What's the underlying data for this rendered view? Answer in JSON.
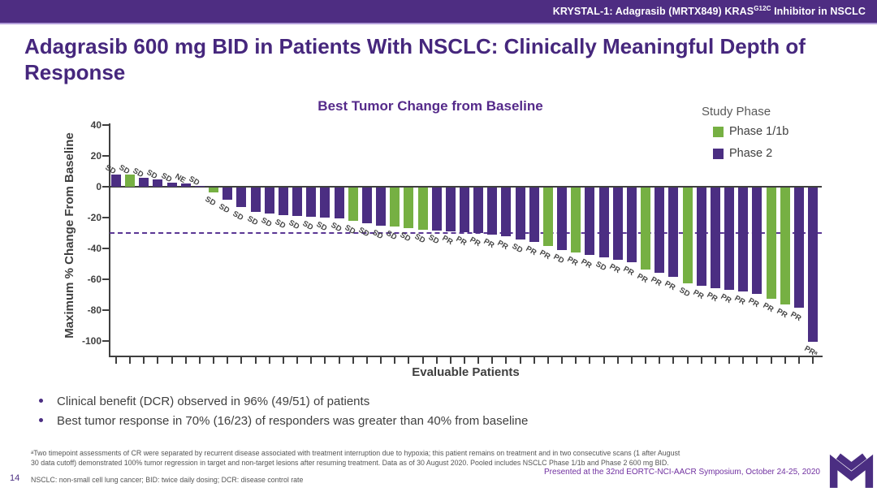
{
  "header": {
    "title_prefix": "KRYSTAL-1: Adagrasib (MRTX849) KRAS",
    "title_sup": "G12C",
    "title_suffix": " Inhibitor in NSCLC"
  },
  "slide": {
    "title": "Adagrasib 600 mg BID in Patients With NSCLC: Clinically Meaningful Depth of Response"
  },
  "chart_data": {
    "type": "bar",
    "subtype": "waterfall",
    "title": "Best Tumor Change from Baseline",
    "xlabel": "Evaluable Patients",
    "ylabel": "Maximum % Change From Baseline",
    "ylim": [
      -100,
      40
    ],
    "yticks": [
      40,
      20,
      0,
      -20,
      -40,
      -60,
      -80,
      -100
    ],
    "reference_line": -30,
    "grid": false,
    "legend": {
      "title": "Study Phase",
      "position": "top-right",
      "entries": [
        {
          "label": "Phase 1/1b",
          "color": "#76b043"
        },
        {
          "label": "Phase 2",
          "color": "#4b2e82"
        }
      ]
    },
    "bars": [
      {
        "value": 8,
        "response": "SD",
        "phase": "Phase 2"
      },
      {
        "value": 8,
        "response": "SD",
        "phase": "Phase 1/1b"
      },
      {
        "value": 6,
        "response": "SD",
        "phase": "Phase 2"
      },
      {
        "value": 5,
        "response": "SD",
        "phase": "Phase 2"
      },
      {
        "value": 2.5,
        "response": "SD",
        "phase": "Phase 2"
      },
      {
        "value": 2,
        "response": "NE",
        "phase": "Phase 2"
      },
      {
        "value": 0.5,
        "response": "SD",
        "phase": "Phase 2"
      },
      {
        "value": -3,
        "response": "SD",
        "phase": "Phase 1/1b"
      },
      {
        "value": -8,
        "response": "SD",
        "phase": "Phase 2"
      },
      {
        "value": -12.5,
        "response": "SD",
        "phase": "Phase 2"
      },
      {
        "value": -16,
        "response": "SD",
        "phase": "Phase 2"
      },
      {
        "value": -17,
        "response": "SD",
        "phase": "Phase 2"
      },
      {
        "value": -18,
        "response": "SD",
        "phase": "Phase 2"
      },
      {
        "value": -18.5,
        "response": "SD",
        "phase": "Phase 2"
      },
      {
        "value": -19,
        "response": "SD",
        "phase": "Phase 2"
      },
      {
        "value": -19.5,
        "response": "SD",
        "phase": "Phase 2"
      },
      {
        "value": -20,
        "response": "SD",
        "phase": "Phase 2"
      },
      {
        "value": -21.5,
        "response": "SD",
        "phase": "Phase 1/1b"
      },
      {
        "value": -23,
        "response": "SD",
        "phase": "Phase 2"
      },
      {
        "value": -24.5,
        "response": "SD",
        "phase": "Phase 2"
      },
      {
        "value": -25.5,
        "response": "SD",
        "phase": "Phase 1/1b"
      },
      {
        "value": -26.5,
        "response": "SD",
        "phase": "Phase 1/1b"
      },
      {
        "value": -27.5,
        "response": "SD",
        "phase": "Phase 1/1b"
      },
      {
        "value": -28,
        "response": "SD",
        "phase": "Phase 2"
      },
      {
        "value": -28.5,
        "response": "PR",
        "phase": "Phase 2"
      },
      {
        "value": -29,
        "response": "PR",
        "phase": "Phase 2"
      },
      {
        "value": -29.5,
        "response": "PR",
        "phase": "Phase 2"
      },
      {
        "value": -30.5,
        "response": "PR",
        "phase": "Phase 2"
      },
      {
        "value": -31.5,
        "response": "PR",
        "phase": "Phase 2"
      },
      {
        "value": -33.5,
        "response": "SD",
        "phase": "Phase 2"
      },
      {
        "value": -35.5,
        "response": "PR",
        "phase": "Phase 2"
      },
      {
        "value": -38,
        "response": "PR",
        "phase": "Phase 1/1b"
      },
      {
        "value": -40.5,
        "response": "PD",
        "phase": "Phase 2"
      },
      {
        "value": -42,
        "response": "PR",
        "phase": "Phase 1/1b"
      },
      {
        "value": -43.5,
        "response": "PR",
        "phase": "Phase 2"
      },
      {
        "value": -45.5,
        "response": "SD",
        "phase": "Phase 2"
      },
      {
        "value": -47,
        "response": "PR",
        "phase": "Phase 2"
      },
      {
        "value": -48.5,
        "response": "PR",
        "phase": "Phase 2"
      },
      {
        "value": -53,
        "response": "PR",
        "phase": "Phase 1/1b"
      },
      {
        "value": -55,
        "response": "PR",
        "phase": "Phase 2"
      },
      {
        "value": -58,
        "response": "PR",
        "phase": "Phase 2"
      },
      {
        "value": -62,
        "response": "SD",
        "phase": "Phase 1/1b"
      },
      {
        "value": -63.5,
        "response": "PR",
        "phase": "Phase 2"
      },
      {
        "value": -65.5,
        "response": "PR",
        "phase": "Phase 2"
      },
      {
        "value": -66.5,
        "response": "PR",
        "phase": "Phase 2"
      },
      {
        "value": -67.5,
        "response": "PR",
        "phase": "Phase 2"
      },
      {
        "value": -69,
        "response": "PR",
        "phase": "Phase 2"
      },
      {
        "value": -72,
        "response": "PR",
        "phase": "Phase 1/1b"
      },
      {
        "value": -76,
        "response": "PR",
        "phase": "Phase 1/1b"
      },
      {
        "value": -78,
        "response": "PR",
        "phase": "Phase 2"
      },
      {
        "value": -100,
        "response": "PRᵃ",
        "phase": "Phase 2"
      }
    ]
  },
  "bullets": [
    "Clinical benefit (DCR) observed in 96% (49/51) of patients",
    "Best tumor response in 70% (16/23) of responders was greater than 40% from baseline"
  ],
  "footnotes": {
    "note": "ᵃTwo timepoint assessments of CR were separated by recurrent disease associated with treatment interruption due to hypoxia; this patient remains on treatment and in two consecutive scans (1 after August 30 data cutoff) demonstrated 100% tumor regression in target and non-target lesions after resuming treatment. Data as of 30 August 2020. Pooled includes NSCLC Phase 1/1b and Phase 2 600 mg BID.",
    "abbreviations": "NSCLC: non-small cell lung cancer; BID: twice daily dosing; DCR: disease control rate",
    "presented": "Presented at the 32nd EORTC-NCI-AACR Symposium, October 24-25, 2020",
    "page_number": "14"
  },
  "colors": {
    "header_purple": "#4e2d82",
    "title_purple": "#46277d",
    "phase1_green": "#76b043",
    "phase2_purple": "#4b2e82",
    "dashed_reference": "#5a3794",
    "presented_purple": "#7030a0"
  }
}
